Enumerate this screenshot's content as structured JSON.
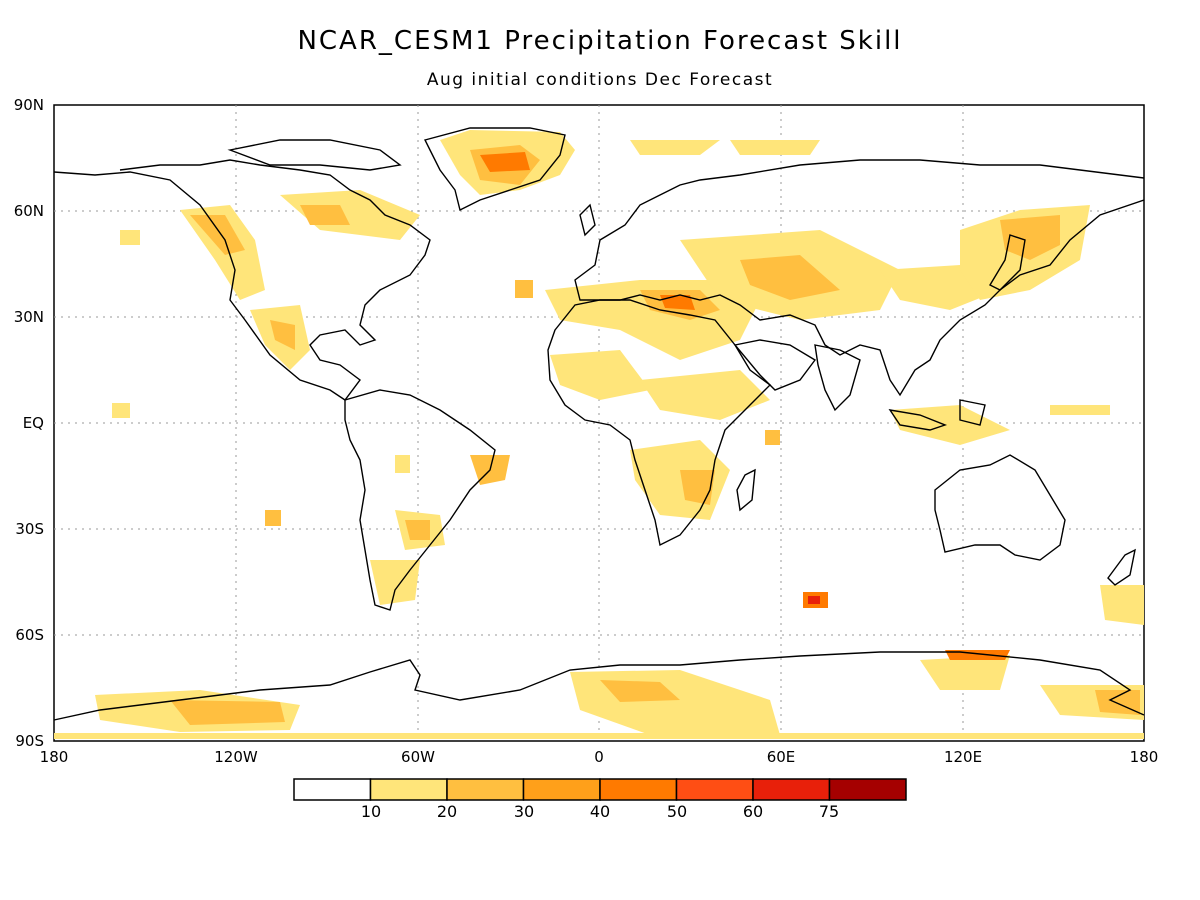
{
  "title": "NCAR_CESM1 Precipitation Forecast Skill",
  "subtitle": "Aug initial conditions  Dec Forecast",
  "axes": {
    "lat_labels": [
      "90N",
      "60N",
      "30N",
      "EQ",
      "30S",
      "60S",
      "90S"
    ],
    "lon_labels": [
      "180",
      "120W",
      "60W",
      "0",
      "60E",
      "120E",
      "180"
    ]
  },
  "colorbar": {
    "levels": [
      "10",
      "20",
      "30",
      "40",
      "50",
      "60",
      "75"
    ],
    "colors": [
      "#ffffff",
      "#ffe57a",
      "#ffbf40",
      "#ffa01a",
      "#ff7a00",
      "#ff4e14",
      "#e8200a",
      "#a50000"
    ]
  },
  "icons": {
    "map": "world-map",
    "coastline": "coastline-outline"
  }
}
